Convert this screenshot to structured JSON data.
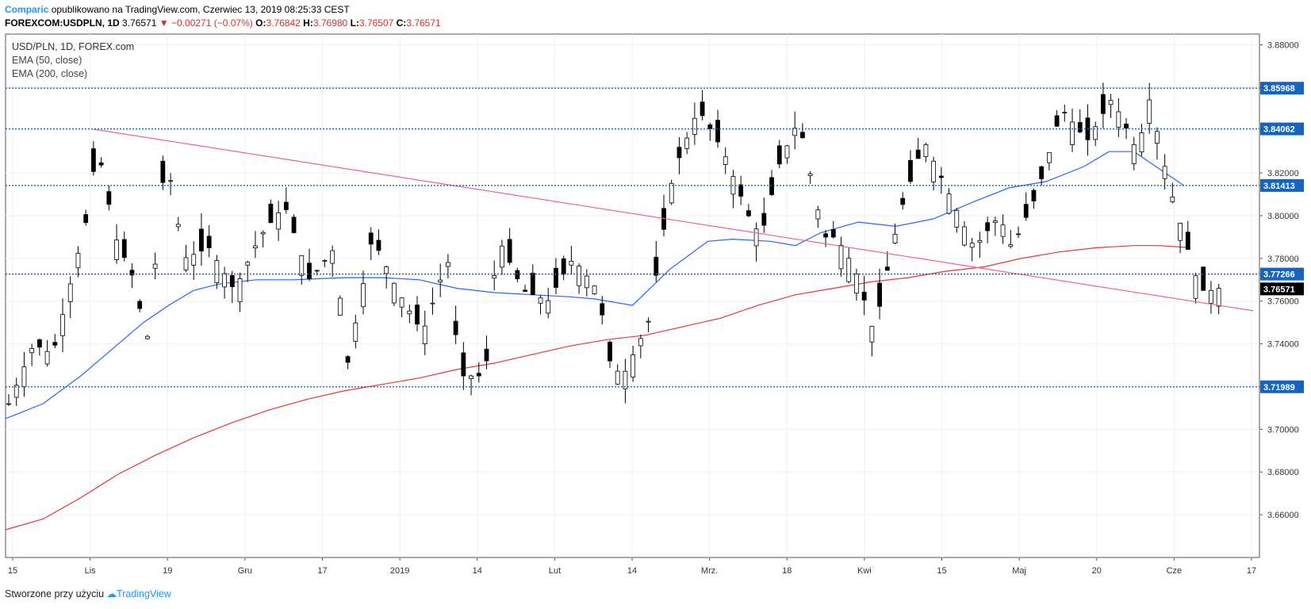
{
  "header": {
    "author": "Comparic",
    "published": "opublikowano na TradingView.com, Czerwiec 13, 2019 08:25:33 CEST"
  },
  "ohlc": {
    "symbol": "FOREXCOM:USDPLN, 1D",
    "last": "3.76571",
    "change": "−0.00271 (−0.07%)",
    "open_label": "O:",
    "open": "3.76842",
    "high_label": "H:",
    "high": "3.76980",
    "low_label": "L:",
    "low": "3.76507",
    "close_label": "C:",
    "close": "3.76571"
  },
  "legend": {
    "symbol": "USD/PLN, 1D, FOREX.com",
    "ema50": "EMA (50, close)",
    "ema200": "EMA (200, close)"
  },
  "footer": {
    "text": "Stworzone przy użyciu",
    "brand": "TradingView"
  },
  "colors": {
    "candle": "#000000",
    "ema50": "#2962ff",
    "ema200": "#e53935",
    "trend": "#f06292",
    "level": "#1565c0",
    "grid": "#eef0f3"
  },
  "chart_data": {
    "type": "candlestick",
    "ylim": [
      3.64,
      3.885
    ],
    "y_ticks": [
      "3.66000",
      "3.68000",
      "3.70000",
      "3.72000",
      "3.74000",
      "3.76000",
      "3.78000",
      "3.80000",
      "3.82000",
      "3.84000",
      "3.86000",
      "3.88000"
    ],
    "x_ticks": [
      "15",
      "Lis",
      "19",
      "Gru",
      "17",
      "2019",
      "14",
      "Lut",
      "14",
      "Mrz.",
      "18",
      "Kwi",
      "15",
      "Maj",
      "20",
      "Cze",
      "17"
    ],
    "levels": [
      {
        "value": 3.85968,
        "label": "3.85968"
      },
      {
        "value": 3.84062,
        "label": "3.84062"
      },
      {
        "value": 3.81413,
        "label": "3.81413"
      },
      {
        "value": 3.77266,
        "label": "3.77266"
      },
      {
        "value": 3.71989,
        "label": "3.71989"
      }
    ],
    "last_price": {
      "value": 3.76571,
      "label": "3.76571"
    },
    "trendline": [
      [
        3.8405,
        0.07
      ],
      [
        3.7555,
        0.995
      ]
    ],
    "ema50_points": [
      [
        0.0,
        3.705
      ],
      [
        0.03,
        3.712
      ],
      [
        0.06,
        3.725
      ],
      [
        0.09,
        3.74
      ],
      [
        0.11,
        3.75
      ],
      [
        0.13,
        3.758
      ],
      [
        0.15,
        3.765
      ],
      [
        0.17,
        3.768
      ],
      [
        0.2,
        3.77
      ],
      [
        0.23,
        3.77
      ],
      [
        0.27,
        3.771
      ],
      [
        0.3,
        3.771
      ],
      [
        0.33,
        3.77
      ],
      [
        0.36,
        3.766
      ],
      [
        0.39,
        3.764
      ],
      [
        0.42,
        3.763
      ],
      [
        0.45,
        3.762
      ],
      [
        0.47,
        3.761
      ],
      [
        0.5,
        3.758
      ],
      [
        0.53,
        3.775
      ],
      [
        0.56,
        3.788
      ],
      [
        0.58,
        3.789
      ],
      [
        0.61,
        3.788
      ],
      [
        0.63,
        3.786
      ],
      [
        0.65,
        3.792
      ],
      [
        0.68,
        3.797
      ],
      [
        0.71,
        3.795
      ],
      [
        0.74,
        3.7985
      ],
      [
        0.77,
        3.806
      ],
      [
        0.8,
        3.813
      ],
      [
        0.83,
        3.816
      ],
      [
        0.86,
        3.823
      ],
      [
        0.88,
        3.83
      ],
      [
        0.9,
        3.83
      ],
      [
        0.92,
        3.822
      ],
      [
        0.94,
        3.814
      ]
    ],
    "ema200_points": [
      [
        0.0,
        3.653
      ],
      [
        0.03,
        3.658
      ],
      [
        0.06,
        3.668
      ],
      [
        0.09,
        3.679
      ],
      [
        0.12,
        3.688
      ],
      [
        0.15,
        3.696
      ],
      [
        0.18,
        3.703
      ],
      [
        0.21,
        3.709
      ],
      [
        0.24,
        3.714
      ],
      [
        0.27,
        3.718
      ],
      [
        0.3,
        3.721
      ],
      [
        0.33,
        3.724
      ],
      [
        0.36,
        3.728
      ],
      [
        0.39,
        3.731
      ],
      [
        0.42,
        3.735
      ],
      [
        0.45,
        3.739
      ],
      [
        0.48,
        3.742
      ],
      [
        0.51,
        3.744
      ],
      [
        0.54,
        3.748
      ],
      [
        0.57,
        3.752
      ],
      [
        0.6,
        3.758
      ],
      [
        0.63,
        3.763
      ],
      [
        0.66,
        3.766
      ],
      [
        0.69,
        3.769
      ],
      [
        0.72,
        3.771
      ],
      [
        0.75,
        3.774
      ],
      [
        0.78,
        3.776
      ],
      [
        0.81,
        3.78
      ],
      [
        0.84,
        3.783
      ],
      [
        0.87,
        3.785
      ],
      [
        0.9,
        3.786
      ],
      [
        0.92,
        3.786
      ],
      [
        0.945,
        3.785
      ]
    ]
  }
}
